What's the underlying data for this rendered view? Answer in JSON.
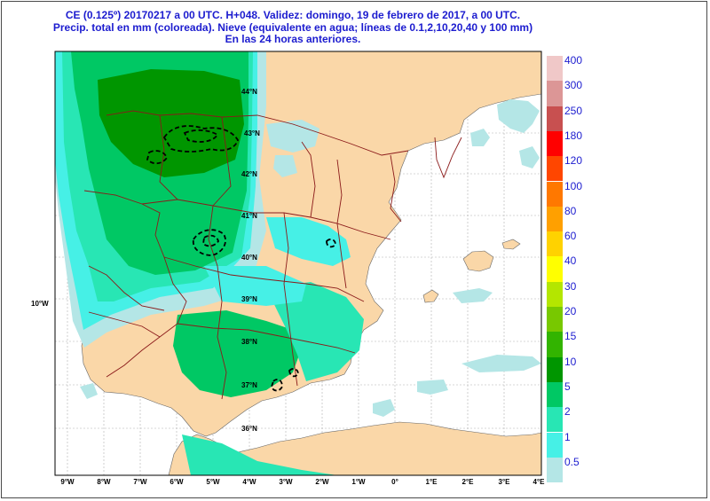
{
  "title": {
    "line1": "CE (0.125º) 20170217 a 00 UTC.  H+048. Validez: domingo, 19 de febrero de 2017,  a  00 UTC.",
    "line2": "Precip. total en mm (coloreada). Nieve (equivalente en agua; líneas de 0.1,2,10,20,40 y 100 mm)",
    "line3": "En las 24 horas anteriores."
  },
  "axes": {
    "lon_labels": [
      "9°W",
      "8°W",
      "7°W",
      "6°W",
      "5°W",
      "4°W",
      "3°W",
      "2°W",
      "1°W",
      "0°",
      "1°E",
      "2°E",
      "3°E",
      "4°E"
    ],
    "left_lat_label": "10°W",
    "inner_lat_labels": [
      "44°N",
      "43°N",
      "42°N",
      "41°N",
      "40°N",
      "39°N",
      "38°N",
      "37°N",
      "36°N"
    ]
  },
  "legend": [
    {
      "label": "400",
      "color": "#f0c8c8"
    },
    {
      "label": "300",
      "color": "#dc9696"
    },
    {
      "label": "250",
      "color": "#c85050"
    },
    {
      "label": "180",
      "color": "#ff0000"
    },
    {
      "label": "120",
      "color": "#ff4600"
    },
    {
      "label": "100",
      "color": "#ff7800"
    },
    {
      "label": "80",
      "color": "#ffa000"
    },
    {
      "label": "60",
      "color": "#ffd200"
    },
    {
      "label": "40",
      "color": "#ffff00"
    },
    {
      "label": "30",
      "color": "#b4e600"
    },
    {
      "label": "20",
      "color": "#78c800"
    },
    {
      "label": "15",
      "color": "#32b400"
    },
    {
      "label": "10",
      "color": "#009600"
    },
    {
      "label": "5",
      "color": "#00c864"
    },
    {
      "label": "2",
      "color": "#28e6b4"
    },
    {
      "label": "1",
      "color": "#46f0e6"
    },
    {
      "label": "0.5",
      "color": "#b4e6e6"
    }
  ],
  "colors": {
    "land": "#fad7a8",
    "sea": "#ffffff",
    "title_text": "#1c1ccf",
    "borders": "#8b1a1a",
    "snow_lines": "#000000"
  }
}
